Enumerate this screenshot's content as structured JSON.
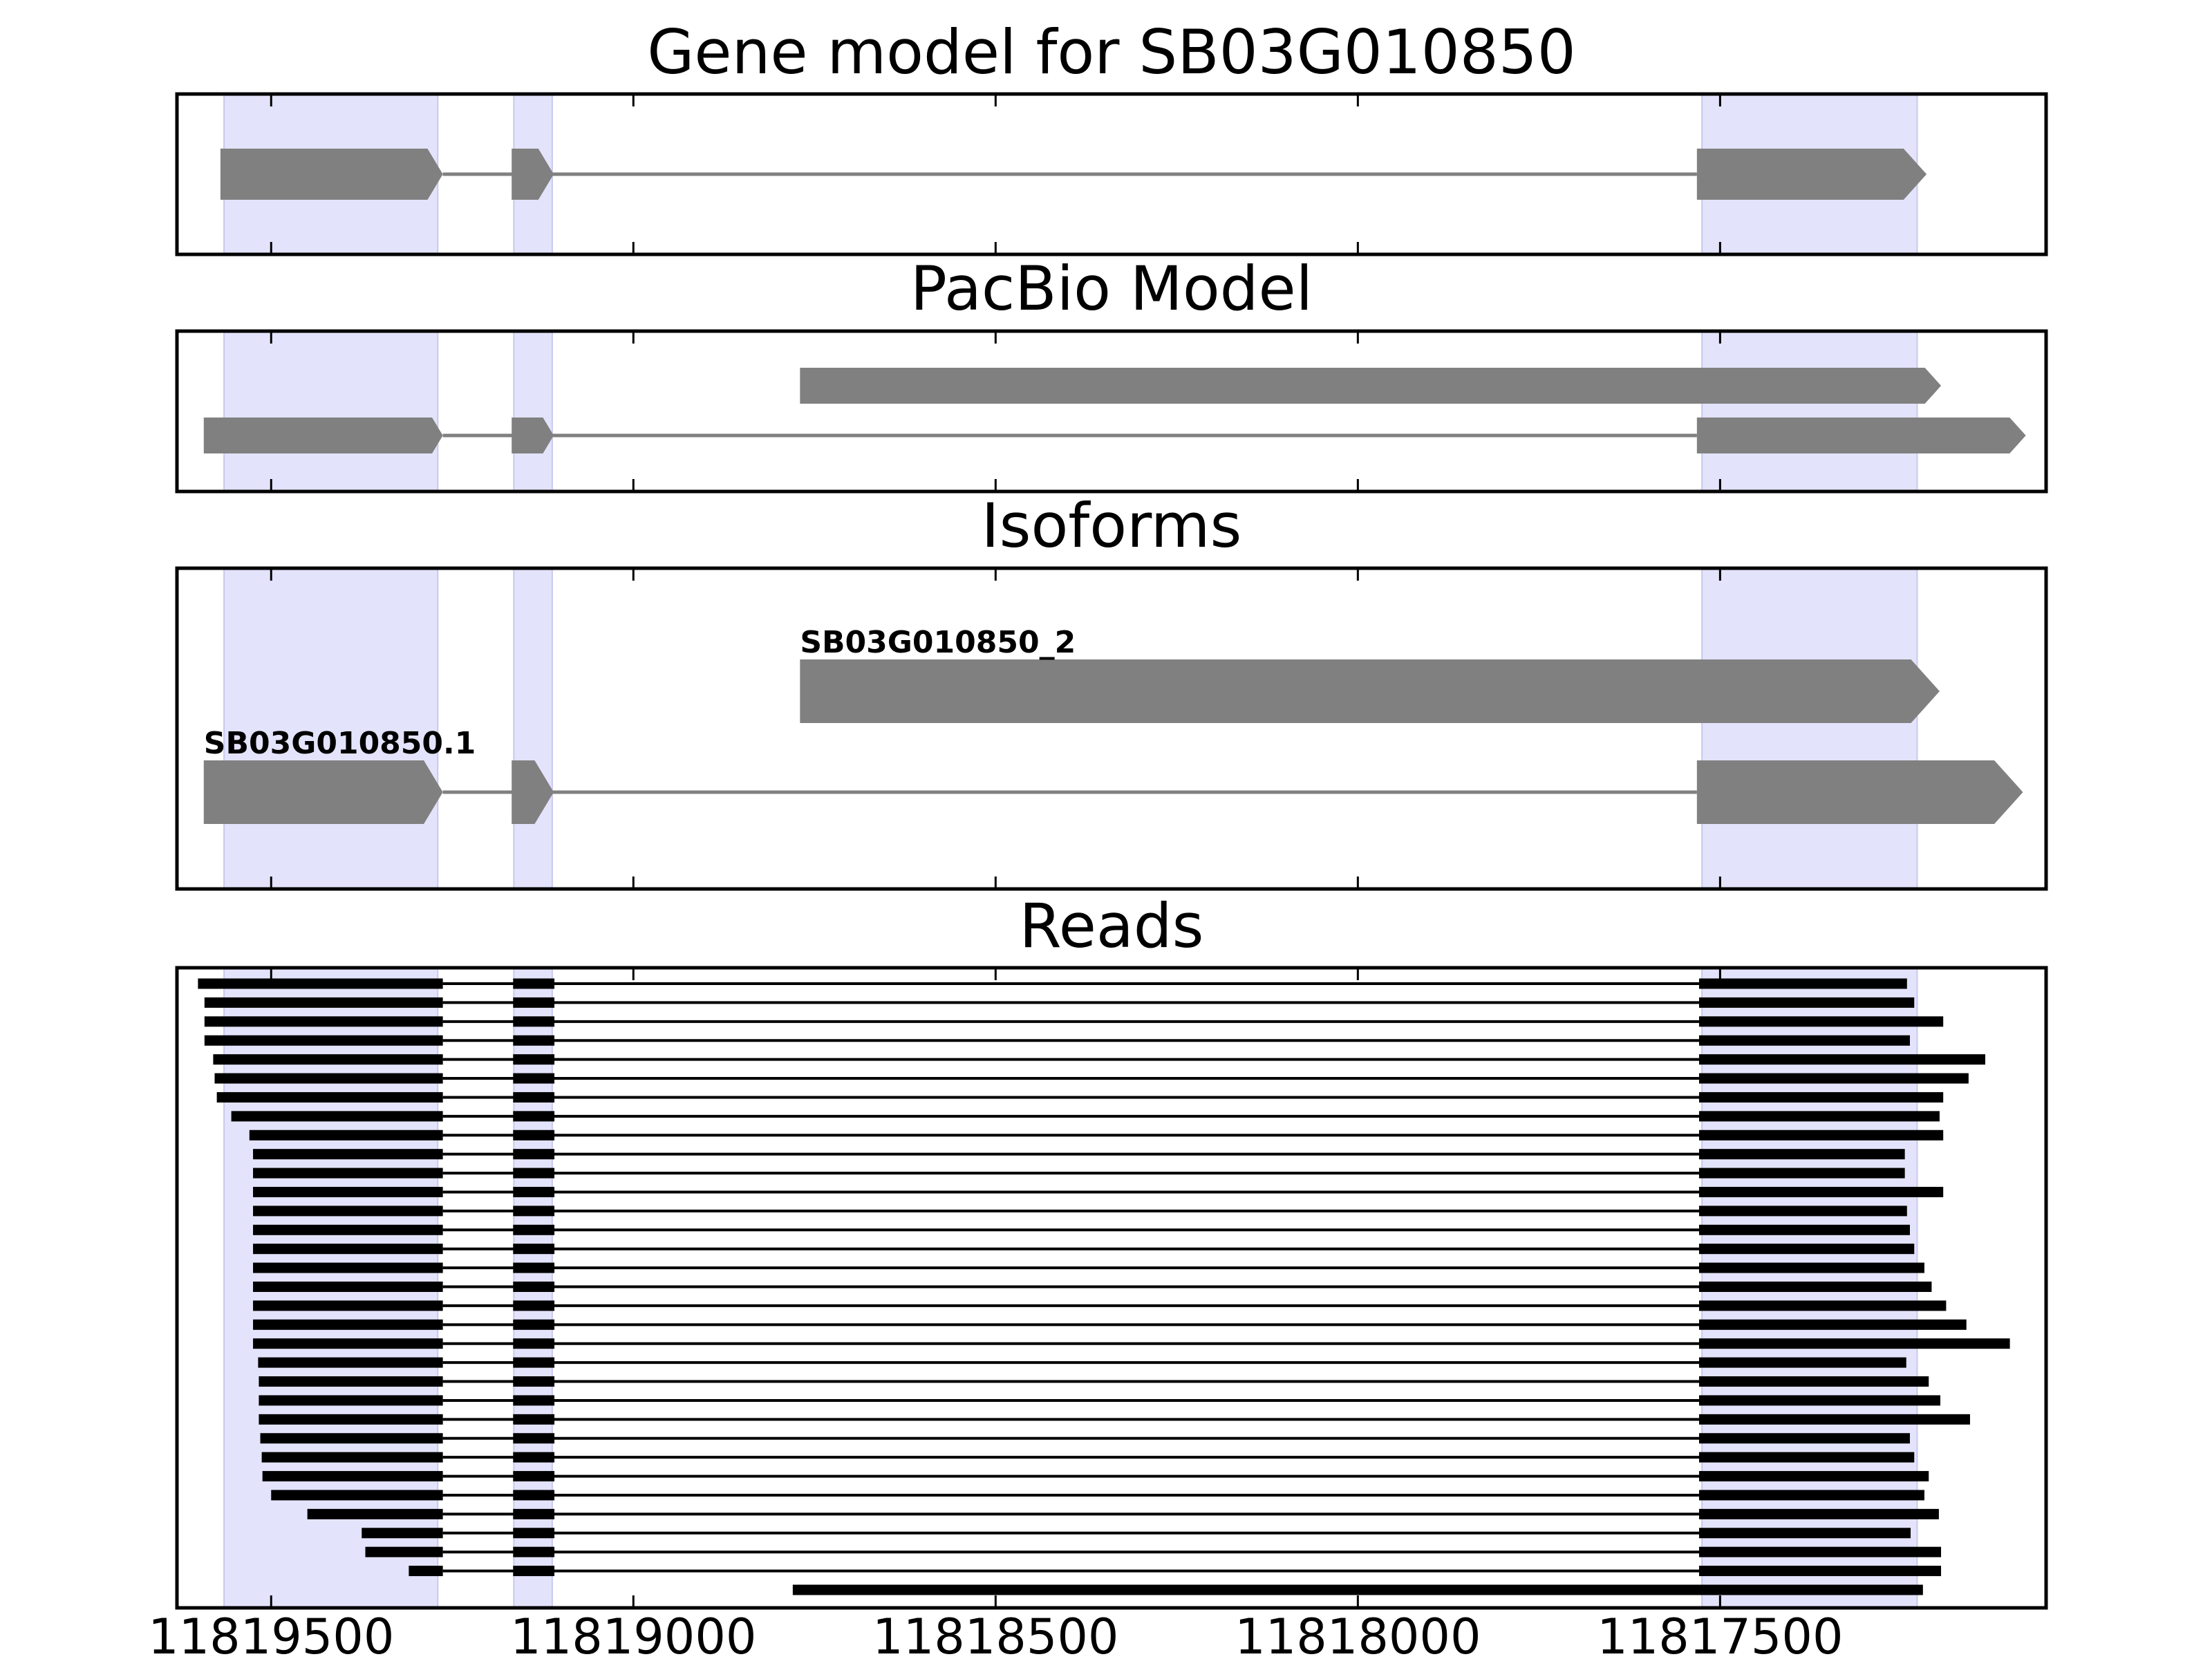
{
  "chart_data": {
    "type": "gene-model-tracks",
    "x_axis": {
      "reversed": true,
      "xlim": [
        11819630,
        11817050
      ],
      "ticks": [
        11819500,
        11819000,
        11818500,
        11818000,
        11817500
      ],
      "tick_labels": [
        "11819500",
        "11819000",
        "11818500",
        "11818000",
        "11817500"
      ]
    },
    "highlight_color": "#e3e3fb",
    "shaded_regions": [
      {
        "start": 11819565,
        "end": 11819270
      },
      {
        "start": 11819165,
        "end": 11819112
      },
      {
        "start": 11817525,
        "end": 11817228
      }
    ],
    "panels": [
      {
        "title": "Gene model for SB03G010850",
        "feature_color": "#808080",
        "transcripts": [
          {
            "label": "",
            "exons": [
              [
                11819570,
                11819263
              ],
              [
                11819168,
                11819110
              ],
              [
                11817532,
                11817215
              ]
            ]
          }
        ]
      },
      {
        "title": "PacBio Model",
        "feature_color": "#808080",
        "transcripts": [
          {
            "label": "",
            "exons": [
              [
                11818770,
                11817195
              ]
            ]
          },
          {
            "label": "",
            "exons": [
              [
                11819593,
                11819263
              ],
              [
                11819168,
                11819110
              ],
              [
                11817532,
                11817078
              ]
            ]
          }
        ]
      },
      {
        "title": "Isoforms",
        "feature_color": "#808080",
        "transcripts": [
          {
            "label": "SB03G010850_2",
            "exons": [
              [
                11818770,
                11817197
              ]
            ]
          },
          {
            "label": "SB03G010850.1",
            "exons": [
              [
                11819593,
                11819263
              ],
              [
                11819168,
                11819110
              ],
              [
                11817532,
                11817082
              ]
            ]
          }
        ]
      },
      {
        "title": "Reads",
        "feature_color": "#000000",
        "reads": [
          {
            "start": 11819601,
            "end": 11817242
          },
          {
            "start": 11819592,
            "end": 11817232
          },
          {
            "start": 11819592,
            "end": 11817192
          },
          {
            "start": 11819592,
            "end": 11817238
          },
          {
            "start": 11819580,
            "end": 11817134
          },
          {
            "start": 11819578,
            "end": 11817157
          },
          {
            "start": 11819575,
            "end": 11817192
          },
          {
            "start": 11819555,
            "end": 11817197
          },
          {
            "start": 11819530,
            "end": 11817192
          },
          {
            "start": 11819525,
            "end": 11817245
          },
          {
            "start": 11819525,
            "end": 11817245
          },
          {
            "start": 11819525,
            "end": 11817192
          },
          {
            "start": 11819525,
            "end": 11817242
          },
          {
            "start": 11819525,
            "end": 11817238
          },
          {
            "start": 11819525,
            "end": 11817232
          },
          {
            "start": 11819525,
            "end": 11817218
          },
          {
            "start": 11819525,
            "end": 11817208
          },
          {
            "start": 11819525,
            "end": 11817188
          },
          {
            "start": 11819525,
            "end": 11817160
          },
          {
            "start": 11819525,
            "end": 11817100
          },
          {
            "start": 11819518,
            "end": 11817243
          },
          {
            "start": 11819517,
            "end": 11817212
          },
          {
            "start": 11819517,
            "end": 11817196
          },
          {
            "start": 11819517,
            "end": 11817155
          },
          {
            "start": 11819515,
            "end": 11817238
          },
          {
            "start": 11819513,
            "end": 11817232
          },
          {
            "start": 11819512,
            "end": 11817212
          },
          {
            "start": 11819500,
            "end": 11817218
          },
          {
            "start": 11819450,
            "end": 11817198
          },
          {
            "start": 11819375,
            "end": 11817237
          },
          {
            "start": 11819370,
            "end": 11817195
          },
          {
            "start": 11819310,
            "end": 11817195
          },
          {
            "start": 11818780,
            "end": 11817220
          }
        ]
      }
    ]
  }
}
